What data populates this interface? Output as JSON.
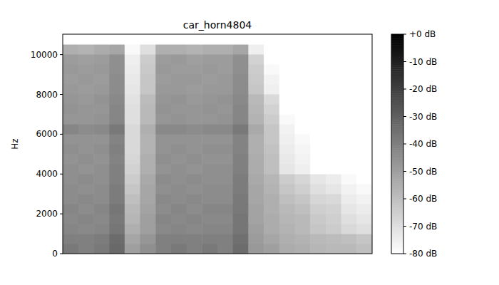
{
  "chart_data": {
    "type": "heatmap",
    "title": "car_horn4804",
    "ylabel": "Hz",
    "ylim": [
      0,
      11025
    ],
    "yticks": [
      0,
      2000,
      4000,
      6000,
      8000,
      10000
    ],
    "tick_labels": "y",
    "colorbar": {
      "range": [
        -80,
        0
      ],
      "ticks": [
        {
          "value": 0,
          "label": "+0 dB"
        },
        {
          "value": -10,
          "label": "-10 dB"
        },
        {
          "value": -20,
          "label": "-20 dB"
        },
        {
          "value": -30,
          "label": "-30 dB"
        },
        {
          "value": -40,
          "label": "-40 dB"
        },
        {
          "value": -50,
          "label": "-50 dB"
        },
        {
          "value": -60,
          "label": "-60 dB"
        },
        {
          "value": -70,
          "label": "-70 dB"
        },
        {
          "value": -80,
          "label": "-80 dB"
        }
      ]
    },
    "cells": [
      [
        -38,
        -40,
        -38,
        -33,
        -50,
        -45,
        -40,
        -38,
        -40,
        -38,
        -40,
        -34,
        -48,
        -50,
        -54,
        -55,
        -57,
        -58,
        -58,
        -60
      ],
      [
        -40,
        -40,
        -39,
        -34,
        -52,
        -47,
        -40,
        -40,
        -40,
        -40,
        -40,
        -35,
        -49,
        -52,
        -55,
        -56,
        -58,
        -59,
        -60,
        -62
      ],
      [
        -42,
        -43,
        -42,
        -37,
        -55,
        -50,
        -43,
        -42,
        -43,
        -42,
        -42,
        -37,
        -50,
        -54,
        -56,
        -58,
        -62,
        -64,
        -68,
        -70
      ],
      [
        -43,
        -42,
        -43,
        -38,
        -57,
        -50,
        -42,
        -43,
        -42,
        -43,
        -43,
        -37,
        -51,
        -54,
        -57,
        -58,
        -63,
        -65,
        -70,
        -72
      ],
      [
        -42,
        -44,
        -42,
        -37,
        -58,
        -51,
        -44,
        -42,
        -44,
        -42,
        -42,
        -38,
        -51,
        -55,
        -58,
        -60,
        -65,
        -66,
        -72,
        -74
      ],
      [
        -44,
        -43,
        -44,
        -39,
        -60,
        -52,
        -43,
        -44,
        -43,
        -44,
        -44,
        -38,
        -52,
        -55,
        -60,
        -62,
        -67,
        -68,
        -74,
        -76
      ],
      [
        -44,
        -45,
        -44,
        -39,
        -62,
        -52,
        -45,
        -44,
        -45,
        -44,
        -44,
        -39,
        -52,
        -56,
        -62,
        -65,
        -70,
        -72,
        -76,
        -78
      ],
      [
        -45,
        -44,
        -45,
        -40,
        -64,
        -53,
        -44,
        -45,
        -44,
        -45,
        -45,
        -39,
        -53,
        -57,
        -64,
        -67,
        -72,
        -74,
        -78,
        -80
      ],
      [
        -45,
        -46,
        -45,
        -40,
        -66,
        -55,
        -46,
        -45,
        -46,
        -45,
        -45,
        -40,
        -54,
        -60,
        -72,
        -75,
        -80,
        -80,
        -80,
        -80
      ],
      [
        -46,
        -45,
        -46,
        -41,
        -67,
        -55,
        -45,
        -46,
        -45,
        -46,
        -46,
        -40,
        -54,
        -60,
        -73,
        -76,
        -80,
        -80,
        -80,
        -80
      ],
      [
        -45,
        -46,
        -45,
        -40,
        -68,
        -56,
        -46,
        -45,
        -46,
        -45,
        -45,
        -41,
        -55,
        -61,
        -74,
        -77,
        -80,
        -80,
        -80,
        -80
      ],
      [
        -46,
        -46,
        -46,
        -41,
        -68,
        -56,
        -46,
        -46,
        -46,
        -46,
        -46,
        -41,
        -55,
        -62,
        -75,
        -78,
        -80,
        -80,
        -80,
        -80
      ],
      [
        -42,
        -44,
        -43,
        -38,
        -68,
        -55,
        -43,
        -43,
        -44,
        -43,
        -43,
        -38,
        -53,
        -62,
        -76,
        -80,
        -80,
        -80,
        -80,
        -80
      ],
      [
        -47,
        -47,
        -46,
        -42,
        -70,
        -58,
        -47,
        -46,
        -47,
        -47,
        -46,
        -42,
        -56,
        -64,
        -78,
        -80,
        -80,
        -80,
        -80,
        -80
      ],
      [
        -46,
        -47,
        -47,
        -42,
        -70,
        -58,
        -46,
        -47,
        -47,
        -46,
        -47,
        -42,
        -57,
        -66,
        -80,
        -80,
        -80,
        -80,
        -80,
        -80
      ],
      [
        -47,
        -48,
        -46,
        -43,
        -71,
        -59,
        -47,
        -46,
        -48,
        -47,
        -46,
        -43,
        -58,
        -68,
        -80,
        -80,
        -80,
        -80,
        -80,
        -80
      ],
      [
        -48,
        -49,
        -48,
        -44,
        -72,
        -62,
        -48,
        -48,
        -49,
        -48,
        -48,
        -44,
        -62,
        -75,
        -80,
        -80,
        -80,
        -80,
        -80,
        -80
      ],
      [
        -49,
        -48,
        -49,
        -44,
        -73,
        -62,
        -49,
        -48,
        -48,
        -49,
        -48,
        -44,
        -63,
        -76,
        -80,
        -80,
        -80,
        -80,
        -80,
        -80
      ],
      [
        -48,
        -49,
        -48,
        -45,
        -74,
        -63,
        -48,
        -49,
        -49,
        -48,
        -49,
        -45,
        -64,
        -78,
        -80,
        -80,
        -80,
        -80,
        -80,
        -80
      ],
      [
        -49,
        -50,
        -49,
        -45,
        -75,
        -64,
        -49,
        -48,
        -50,
        -49,
        -49,
        -45,
        -66,
        -80,
        -80,
        -80,
        -80,
        -80,
        -80,
        -80
      ],
      [
        -55,
        -56,
        -54,
        -52,
        -78,
        -70,
        -55,
        -55,
        -56,
        -55,
        -55,
        -52,
        -75,
        -80,
        -80,
        -80,
        -80,
        -80,
        -80,
        -80
      ],
      [
        -80,
        -80,
        -80,
        -80,
        -80,
        -80,
        -80,
        -80,
        -80,
        -80,
        -80,
        -80,
        -80,
        -80,
        -80,
        -80,
        -80,
        -80,
        -80,
        -80
      ]
    ]
  }
}
